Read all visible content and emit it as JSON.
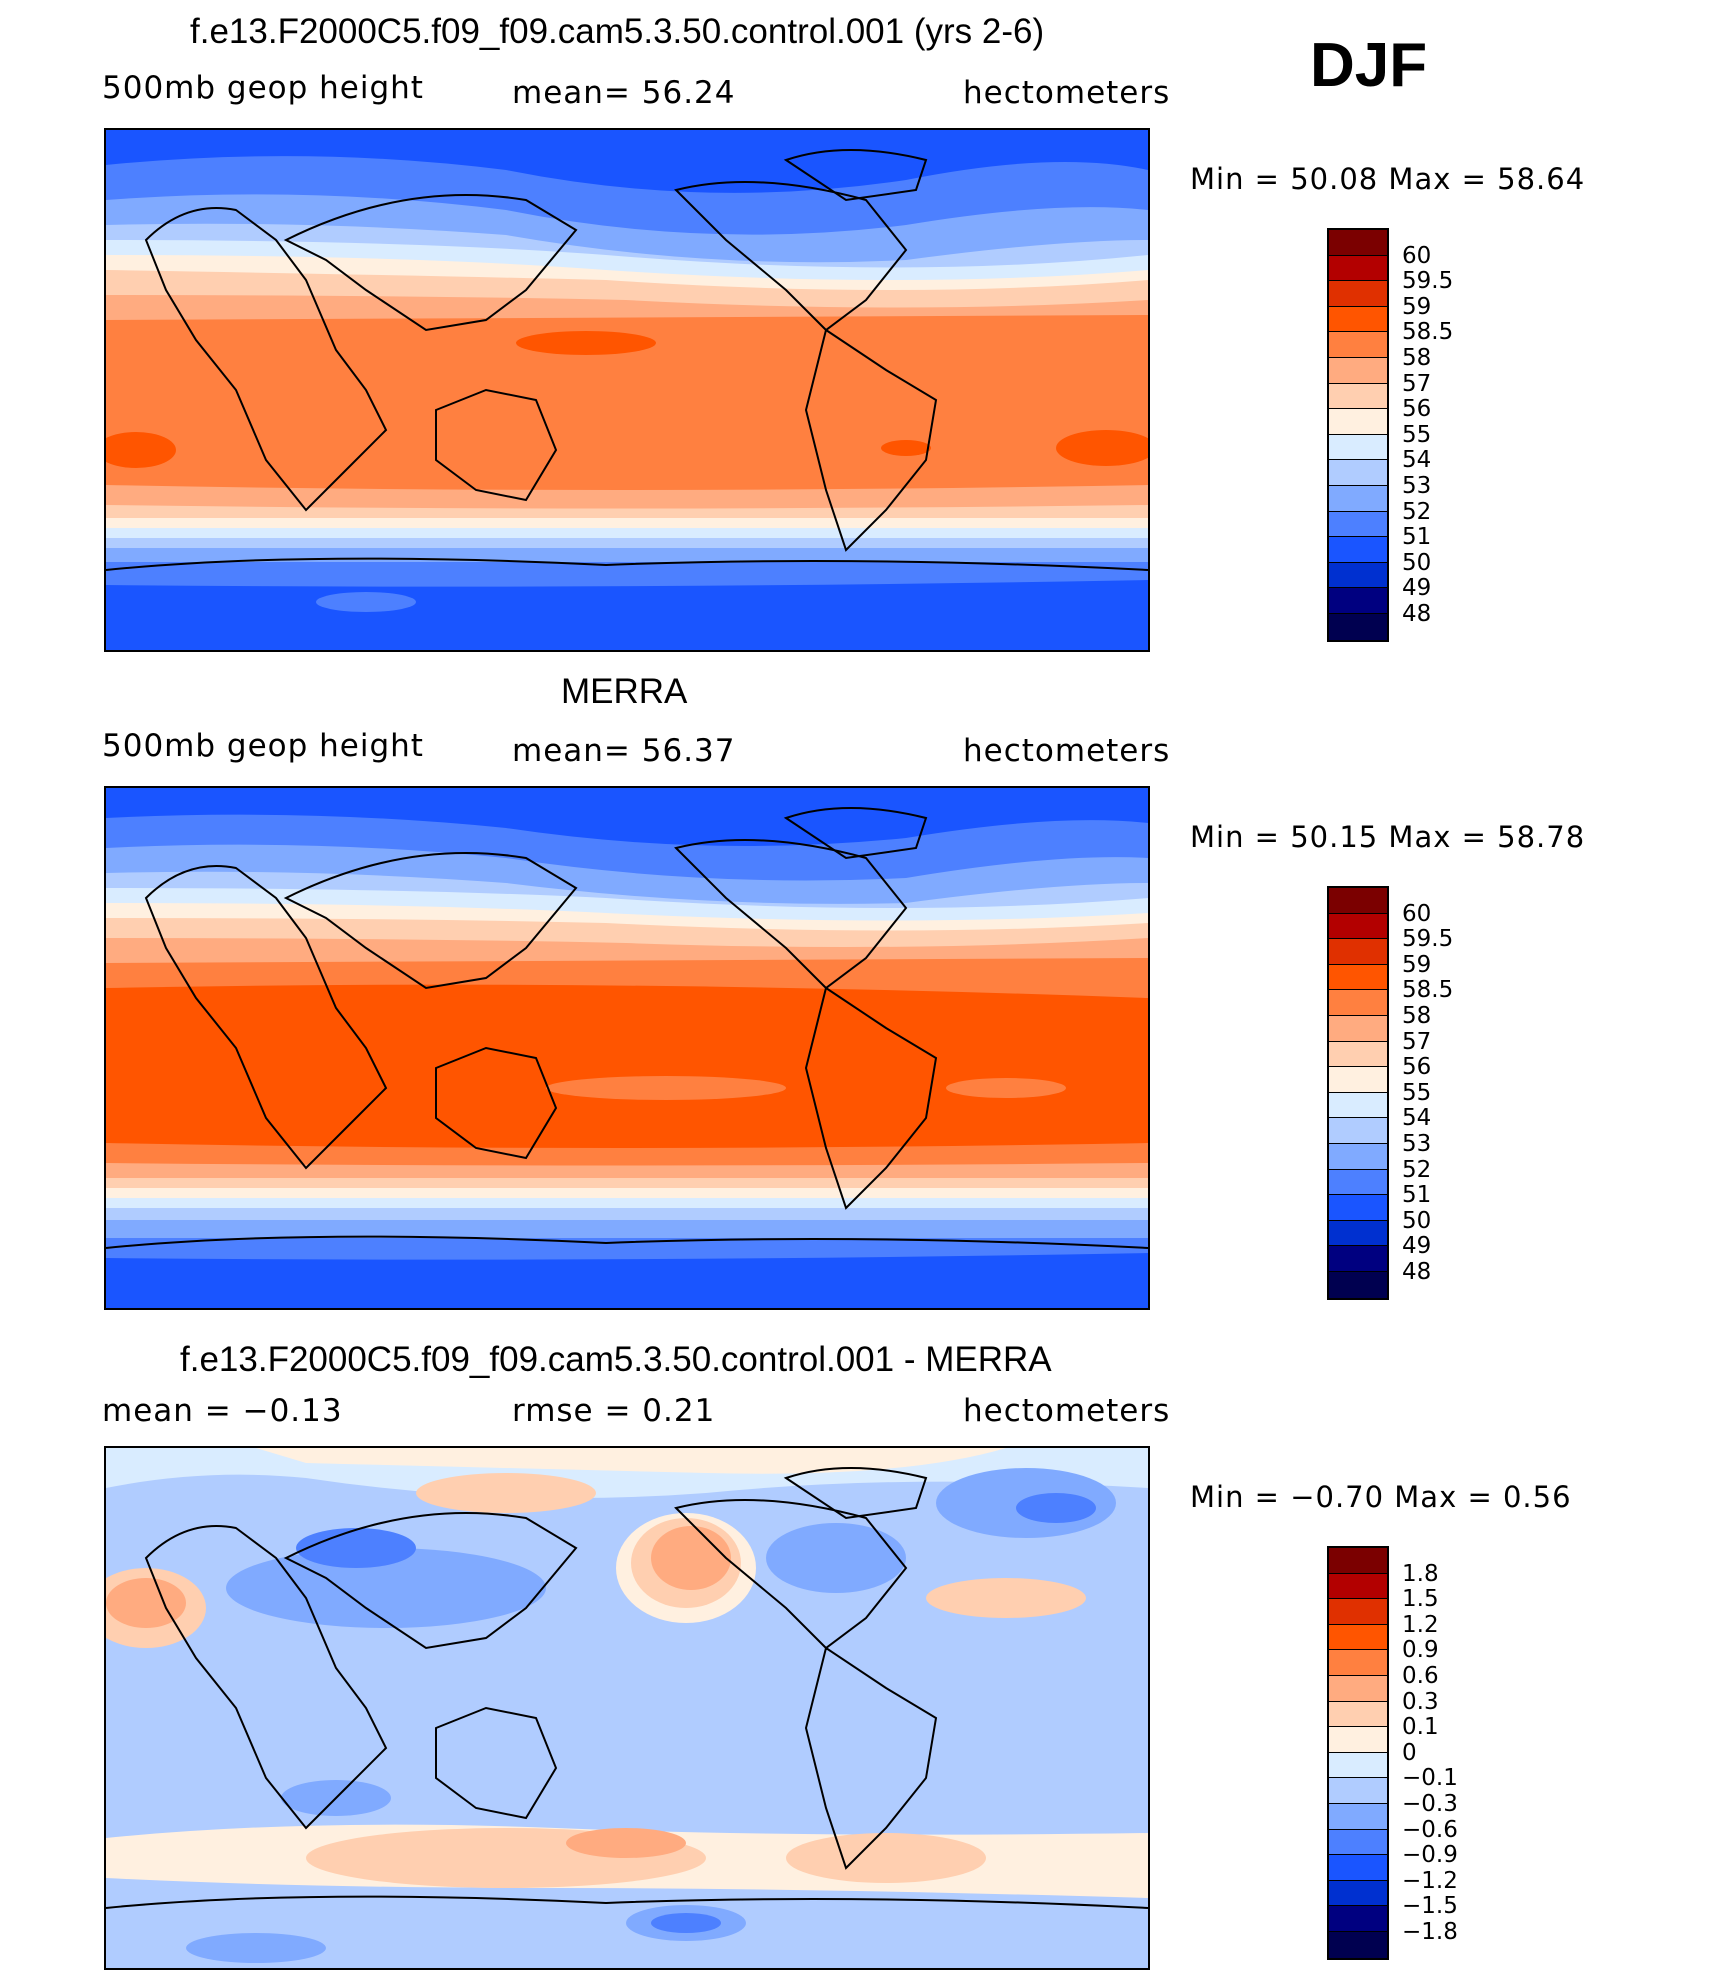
{
  "djf_label": "DJF",
  "panels": [
    {
      "title": "f.e13.F2000C5.f09_f09.cam5.3.50.control.001 (yrs 2-6)",
      "left_label": "500mb  geop  height",
      "center_label": "mean=   56.24",
      "units": "hectometers",
      "minmax": "Min  =    50.08  Max  =    58.64",
      "colorbar": {
        "labels": [
          "60",
          "59.5",
          "59",
          "58.5",
          "58",
          "57",
          "56",
          "55",
          "54",
          "53",
          "52",
          "51",
          "50",
          "49",
          "48"
        ],
        "colors": [
          "#7b0000",
          "#b30000",
          "#e03000",
          "#ff5500",
          "#ff8040",
          "#ffab80",
          "#ffcfb0",
          "#fff0e0",
          "#d9ecff",
          "#b0ccff",
          "#80aaff",
          "#4d80ff",
          "#1a55ff",
          "#0030d0",
          "#000080",
          "#000050"
        ]
      }
    },
    {
      "title": "MERRA",
      "left_label": "500mb  geop  height",
      "center_label": "mean=   56.37",
      "units": "hectometers",
      "minmax": "Min  =    50.15  Max  =    58.78",
      "colorbar": {
        "labels": [
          "60",
          "59.5",
          "59",
          "58.5",
          "58",
          "57",
          "56",
          "55",
          "54",
          "53",
          "52",
          "51",
          "50",
          "49",
          "48"
        ],
        "colors": [
          "#7b0000",
          "#b30000",
          "#e03000",
          "#ff5500",
          "#ff8040",
          "#ffab80",
          "#ffcfb0",
          "#fff0e0",
          "#d9ecff",
          "#b0ccff",
          "#80aaff",
          "#4d80ff",
          "#1a55ff",
          "#0030d0",
          "#000080",
          "#000050"
        ]
      }
    },
    {
      "title": "f.e13.F2000C5.f09_f09.cam5.3.50.control.001 - MERRA",
      "left_label": "mean  =    −0.13",
      "center_label": "rmse  =     0.21",
      "units": "hectometers",
      "minmax": "Min  =    −0.70  Max  =      0.56",
      "colorbar": {
        "labels": [
          "1.8",
          "1.5",
          "1.2",
          "0.9",
          "0.6",
          "0.3",
          "0.1",
          "0",
          "−0.1",
          "−0.3",
          "−0.6",
          "−0.9",
          "−1.2",
          "−1.5",
          "−1.8"
        ],
        "colors": [
          "#7b0000",
          "#b30000",
          "#e03000",
          "#ff5500",
          "#ff8040",
          "#ffab80",
          "#ffcfb0",
          "#fff0e0",
          "#d9ecff",
          "#b0ccff",
          "#80aaff",
          "#4d80ff",
          "#1a55ff",
          "#0030d0",
          "#000080",
          "#000050"
        ]
      }
    }
  ]
}
